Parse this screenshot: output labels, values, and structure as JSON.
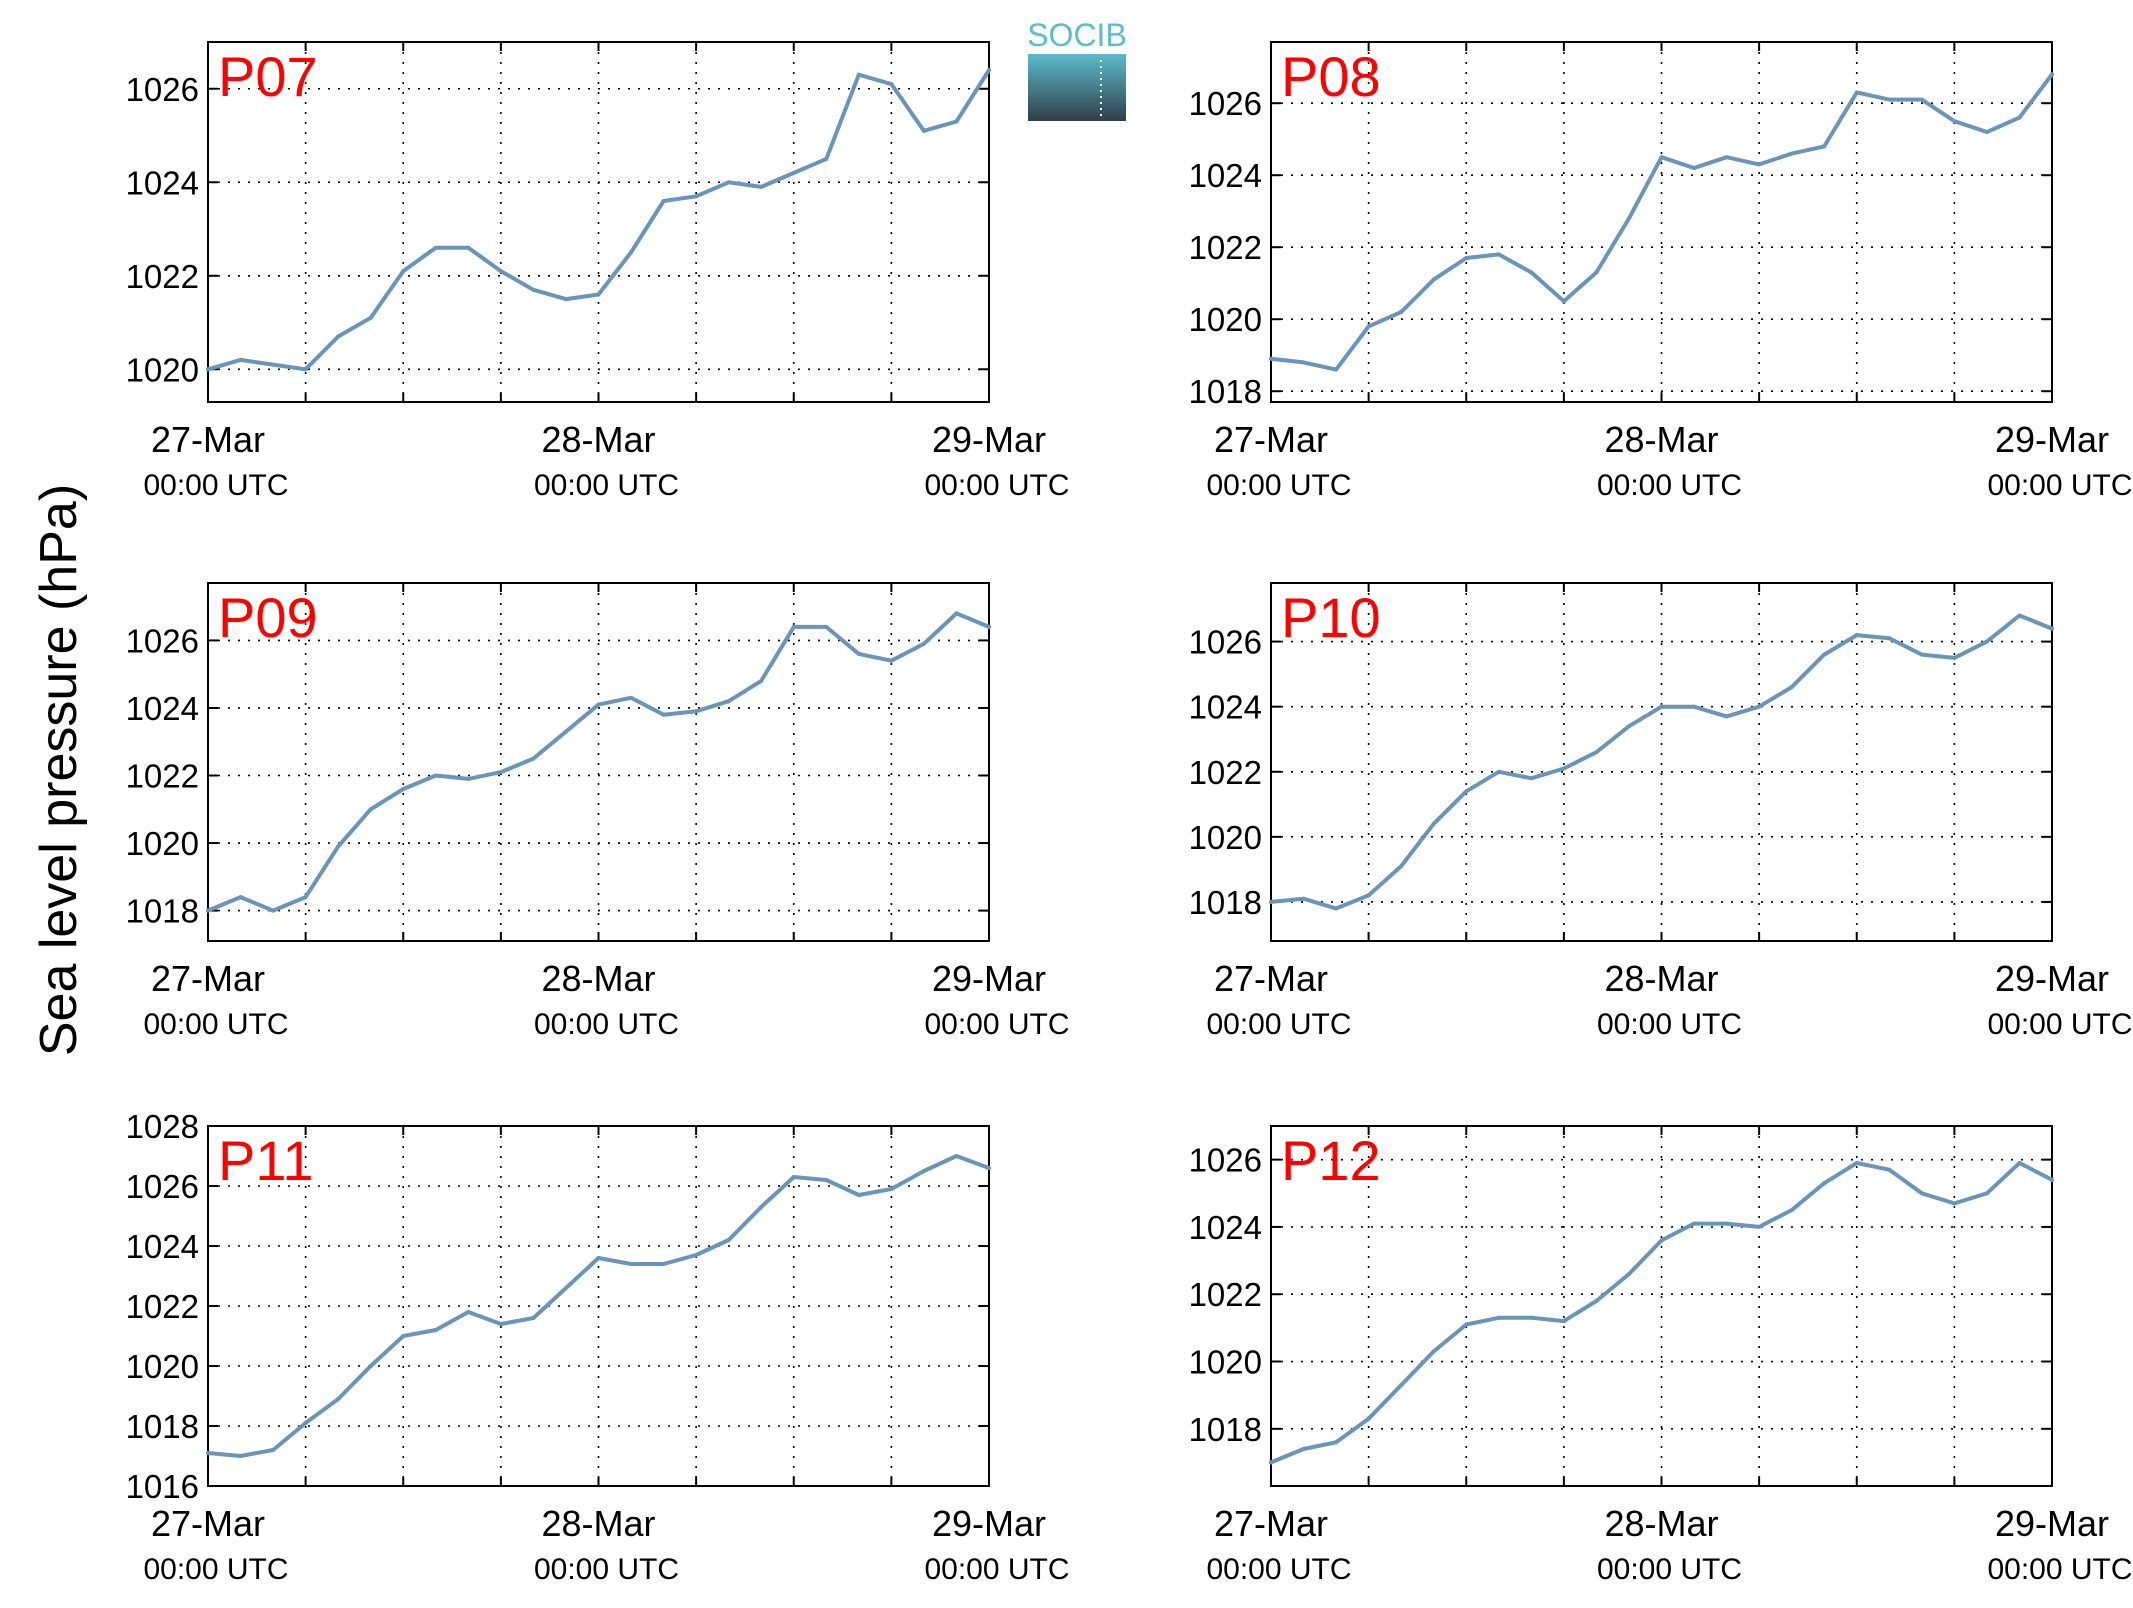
{
  "logo": {
    "text": "SOCIB",
    "text_color": "#5bbccc",
    "gradient_top": "#5bbccc",
    "gradient_bottom": "#2f3e48"
  },
  "ylabel": "Sea level pressure (hPa)",
  "line_color": "#6a95b8",
  "label_color": "#ff0000",
  "x_tick_labels": [
    {
      "date": "27-Mar",
      "time": "00:00 UTC"
    },
    {
      "date": "28-Mar",
      "time": "00:00 UTC"
    },
    {
      "date": "29-Mar",
      "time": "00:00 UTC"
    }
  ],
  "chart_data": [
    {
      "type": "line",
      "label": "P07",
      "x_hours": [
        0,
        2,
        4,
        6,
        8,
        10,
        12,
        14,
        16,
        18,
        20,
        22,
        24,
        26,
        28,
        30,
        32,
        34,
        36,
        38,
        40,
        42,
        44,
        46,
        48
      ],
      "xlim": [
        0,
        48
      ],
      "x_ticks": [
        0,
        24,
        48
      ],
      "y_ticks": [
        1020,
        1022,
        1024,
        1026
      ],
      "ylim": [
        1019.3,
        1027.0
      ],
      "values": [
        1020.0,
        1020.2,
        1020.1,
        1020.0,
        1020.7,
        1021.1,
        1022.1,
        1022.6,
        1022.6,
        1022.1,
        1021.7,
        1021.5,
        1021.6,
        1022.5,
        1023.6,
        1023.7,
        1024.0,
        1023.9,
        1024.2,
        1024.5,
        1026.3,
        1026.1,
        1025.1,
        1025.3,
        1026.4
      ]
    },
    {
      "type": "line",
      "label": "P08",
      "x_hours": [
        0,
        2,
        4,
        6,
        8,
        10,
        12,
        14,
        16,
        18,
        20,
        22,
        24,
        26,
        28,
        30,
        32,
        34,
        36,
        38,
        40,
        42,
        44,
        46,
        48
      ],
      "xlim": [
        0,
        48
      ],
      "x_ticks": [
        0,
        24,
        48
      ],
      "y_ticks": [
        1018,
        1020,
        1022,
        1024,
        1026
      ],
      "ylim": [
        1017.7,
        1027.7
      ],
      "values": [
        1018.9,
        1018.8,
        1018.6,
        1019.8,
        1020.2,
        1021.1,
        1021.7,
        1021.8,
        1021.3,
        1020.5,
        1021.3,
        1022.8,
        1024.5,
        1024.2,
        1024.5,
        1024.3,
        1024.6,
        1024.8,
        1026.3,
        1026.1,
        1026.1,
        1025.5,
        1025.2,
        1025.6,
        1026.8
      ]
    },
    {
      "type": "line",
      "label": "P09",
      "x_hours": [
        0,
        2,
        4,
        6,
        8,
        10,
        12,
        14,
        16,
        18,
        20,
        22,
        24,
        26,
        28,
        30,
        32,
        34,
        36,
        38,
        40,
        42,
        44,
        46,
        48
      ],
      "xlim": [
        0,
        48
      ],
      "x_ticks": [
        0,
        24,
        48
      ],
      "y_ticks": [
        1018,
        1020,
        1022,
        1024,
        1026
      ],
      "ylim": [
        1017.1,
        1027.7
      ],
      "values": [
        1018.0,
        1018.4,
        1018.0,
        1018.4,
        1019.9,
        1021.0,
        1021.6,
        1022.0,
        1021.9,
        1022.1,
        1022.5,
        1023.3,
        1024.1,
        1024.3,
        1023.8,
        1023.9,
        1024.2,
        1024.8,
        1026.4,
        1026.4,
        1025.6,
        1025.4,
        1025.9,
        1026.8,
        1026.4
      ]
    },
    {
      "type": "line",
      "label": "P10",
      "x_hours": [
        0,
        2,
        4,
        6,
        8,
        10,
        12,
        14,
        16,
        18,
        20,
        22,
        24,
        26,
        28,
        30,
        32,
        34,
        36,
        38,
        40,
        42,
        44,
        46,
        48
      ],
      "xlim": [
        0,
        48
      ],
      "x_ticks": [
        0,
        24,
        48
      ],
      "y_ticks": [
        1018,
        1020,
        1022,
        1024,
        1026
      ],
      "ylim": [
        1016.8,
        1027.8
      ],
      "values": [
        1018.0,
        1018.1,
        1017.8,
        1018.2,
        1019.1,
        1020.4,
        1021.4,
        1022.0,
        1021.8,
        1022.1,
        1022.6,
        1023.4,
        1024.0,
        1024.0,
        1023.7,
        1024.0,
        1024.6,
        1025.6,
        1026.2,
        1026.1,
        1025.6,
        1025.5,
        1026.0,
        1026.8,
        1026.4
      ]
    },
    {
      "type": "line",
      "label": "P11",
      "x_hours": [
        0,
        2,
        4,
        6,
        8,
        10,
        12,
        14,
        16,
        18,
        20,
        22,
        24,
        26,
        28,
        30,
        32,
        34,
        36,
        38,
        40,
        42,
        44,
        46,
        48
      ],
      "xlim": [
        0,
        48
      ],
      "x_ticks": [
        0,
        24,
        48
      ],
      "y_ticks": [
        1016,
        1018,
        1020,
        1022,
        1024,
        1026,
        1028
      ],
      "ylim": [
        1016,
        1028
      ],
      "values": [
        1017.1,
        1017.0,
        1017.2,
        1018.1,
        1018.9,
        1020.0,
        1021.0,
        1021.2,
        1021.8,
        1021.4,
        1021.6,
        1022.6,
        1023.6,
        1023.4,
        1023.4,
        1023.7,
        1024.2,
        1025.3,
        1026.3,
        1026.2,
        1025.7,
        1025.9,
        1026.5,
        1027.0,
        1026.6
      ]
    },
    {
      "type": "line",
      "label": "P12",
      "x_hours": [
        0,
        2,
        4,
        6,
        8,
        10,
        12,
        14,
        16,
        18,
        20,
        22,
        24,
        26,
        28,
        30,
        32,
        34,
        36,
        38,
        40,
        42,
        44,
        46,
        48
      ],
      "xlim": [
        0,
        48
      ],
      "x_ticks": [
        0,
        24,
        48
      ],
      "y_ticks": [
        1018,
        1020,
        1022,
        1024,
        1026
      ],
      "ylim": [
        1016.3,
        1027.0
      ],
      "values": [
        1017.0,
        1017.4,
        1017.6,
        1018.3,
        1019.3,
        1020.3,
        1021.1,
        1021.3,
        1021.3,
        1021.2,
        1021.8,
        1022.6,
        1023.6,
        1024.1,
        1024.1,
        1024.0,
        1024.5,
        1025.3,
        1025.9,
        1025.7,
        1025.0,
        1024.7,
        1025.0,
        1025.9,
        1025.4
      ]
    }
  ]
}
